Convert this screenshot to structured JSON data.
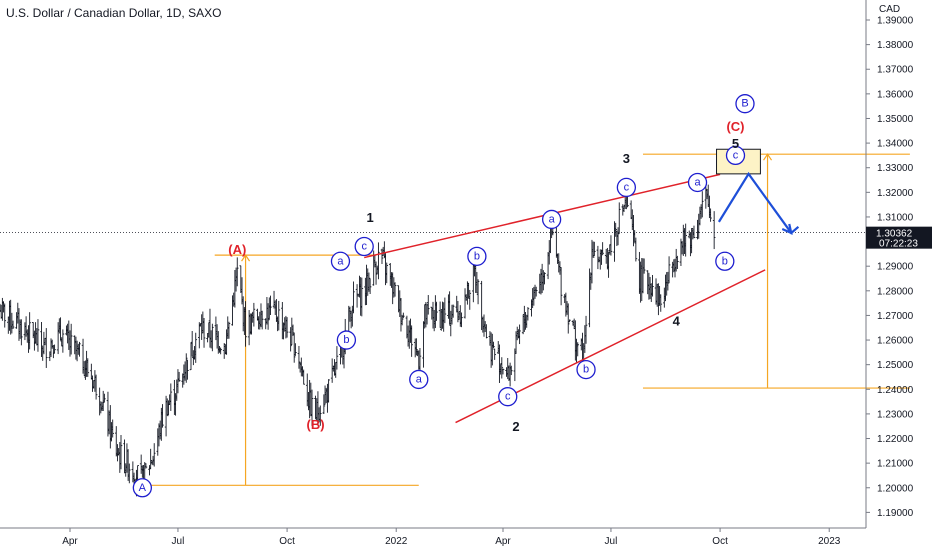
{
  "header": {
    "title": "U.S. Dollar / Canadian Dollar, 1D, SAXO"
  },
  "axis": {
    "currency_label": "CAD",
    "price_ticks": [
      "1.39000",
      "1.38000",
      "1.37000",
      "1.36000",
      "1.35000",
      "1.34000",
      "1.33000",
      "1.32000",
      "1.31000",
      "1.30000",
      "1.29000",
      "1.28000",
      "1.27000",
      "1.26000",
      "1.25000",
      "1.24000",
      "1.23000",
      "1.22000",
      "1.21000",
      "1.20000",
      "1.19000"
    ],
    "time_ticks": [
      "Apr",
      "Jul",
      "Oct",
      "2022",
      "Apr",
      "Jul",
      "Oct",
      "2023"
    ],
    "last_price": "1.30362",
    "countdown": "07:22:23"
  },
  "colors": {
    "bars": "#131722",
    "trendline": "#e0222a",
    "fib": "#f5a623",
    "projection": "#1e4fd8",
    "wave_circle": "#1e1ecf",
    "wave_red": "#e0222a",
    "target_box_fill": "#fdf3c6",
    "price_tag": "#131722"
  },
  "chart_data": {
    "type": "candlestick-ohlc",
    "symbol": "USDCAD",
    "timeframe": "1D",
    "ylim": [
      1.185,
      1.395
    ],
    "x_range": [
      "2021-02-01",
      "2023-02-01"
    ],
    "price_path": [
      [
        "2021-02-01",
        1.272
      ],
      [
        "2021-02-20",
        1.265
      ],
      [
        "2021-03-10",
        1.257
      ],
      [
        "2021-03-25",
        1.262
      ],
      [
        "2021-04-10",
        1.253
      ],
      [
        "2021-04-25",
        1.24
      ],
      [
        "2021-05-10",
        1.215
      ],
      [
        "2021-05-25",
        1.207
      ],
      [
        "2021-06-01",
        1.203
      ],
      [
        "2021-06-10",
        1.213
      ],
      [
        "2021-06-20",
        1.232
      ],
      [
        "2021-06-30",
        1.24
      ],
      [
        "2021-07-10",
        1.253
      ],
      [
        "2021-07-20",
        1.265
      ],
      [
        "2021-07-30",
        1.262
      ],
      [
        "2021-08-10",
        1.258
      ],
      [
        "2021-08-20",
        1.287
      ],
      [
        "2021-08-27",
        1.265
      ],
      [
        "2021-09-10",
        1.272
      ],
      [
        "2021-09-25",
        1.27
      ],
      [
        "2021-10-10",
        1.255
      ],
      [
        "2021-10-20",
        1.234
      ],
      [
        "2021-10-25",
        1.23
      ],
      [
        "2021-11-05",
        1.24
      ],
      [
        "2021-11-15",
        1.254
      ],
      [
        "2021-11-25",
        1.275
      ],
      [
        "2021-12-05",
        1.28
      ],
      [
        "2021-12-18",
        1.295
      ],
      [
        "2021-12-25",
        1.287
      ],
      [
        "2022-01-05",
        1.272
      ],
      [
        "2022-01-20",
        1.253
      ],
      [
        "2022-01-25",
        1.27
      ],
      [
        "2022-02-10",
        1.27
      ],
      [
        "2022-02-25",
        1.272
      ],
      [
        "2022-03-08",
        1.288
      ],
      [
        "2022-03-20",
        1.258
      ],
      [
        "2022-04-01",
        1.25
      ],
      [
        "2022-04-05",
        1.245
      ],
      [
        "2022-04-15",
        1.262
      ],
      [
        "2022-04-25",
        1.277
      ],
      [
        "2022-05-05",
        1.288
      ],
      [
        "2022-05-12",
        1.303
      ],
      [
        "2022-05-20",
        1.283
      ],
      [
        "2022-06-01",
        1.26
      ],
      [
        "2022-06-08",
        1.253
      ],
      [
        "2022-06-15",
        1.298
      ],
      [
        "2022-06-25",
        1.29
      ],
      [
        "2022-07-05",
        1.305
      ],
      [
        "2022-07-14",
        1.318
      ],
      [
        "2022-07-25",
        1.285
      ],
      [
        "2022-08-05",
        1.283
      ],
      [
        "2022-08-12",
        1.275
      ],
      [
        "2022-08-25",
        1.296
      ],
      [
        "2022-09-10",
        1.305
      ],
      [
        "2022-09-19",
        1.318
      ],
      [
        "2022-09-26",
        1.304
      ]
    ],
    "annotations": [
      {
        "label": "A",
        "style": "circle-blue",
        "date": "2021-06-01",
        "price": 1.2,
        "pos": "below"
      },
      {
        "label": "(A)",
        "style": "red",
        "date": "2021-08-20",
        "price": 1.297
      },
      {
        "label": "(B)",
        "style": "red",
        "date": "2021-10-25",
        "price": 1.226
      },
      {
        "label": "1",
        "style": "black",
        "date": "2021-12-10",
        "price": 1.31
      },
      {
        "label": "a",
        "style": "circle-blue",
        "date": "2021-11-15",
        "price": 1.292
      },
      {
        "label": "b",
        "style": "circle-blue",
        "date": "2021-11-20",
        "price": 1.26
      },
      {
        "label": "c",
        "style": "circle-blue",
        "date": "2021-12-05",
        "price": 1.298
      },
      {
        "label": "a",
        "style": "circle-blue",
        "date": "2022-01-20",
        "price": 1.244
      },
      {
        "label": "b",
        "style": "circle-blue",
        "date": "2022-03-10",
        "price": 1.294
      },
      {
        "label": "c",
        "style": "circle-blue",
        "date": "2022-04-05",
        "price": 1.237
      },
      {
        "label": "2",
        "style": "black",
        "date": "2022-04-12",
        "price": 1.225
      },
      {
        "label": "a",
        "style": "circle-blue",
        "date": "2022-05-12",
        "price": 1.309
      },
      {
        "label": "b",
        "style": "circle-blue",
        "date": "2022-06-10",
        "price": 1.248
      },
      {
        "label": "c",
        "style": "circle-blue",
        "date": "2022-07-14",
        "price": 1.322
      },
      {
        "label": "3",
        "style": "black",
        "date": "2022-07-14",
        "price": 1.334
      },
      {
        "label": "4",
        "style": "black",
        "date": "2022-08-25",
        "price": 1.268
      },
      {
        "label": "a",
        "style": "circle-blue",
        "date": "2022-09-12",
        "price": 1.324
      },
      {
        "label": "b",
        "style": "circle-blue",
        "date": "2022-10-05",
        "price": 1.292
      },
      {
        "label": "c",
        "style": "circle-blue",
        "date": "2022-10-14",
        "price": 1.335
      },
      {
        "label": "5",
        "style": "black",
        "date": "2022-10-14",
        "price": 1.34
      },
      {
        "label": "(C)",
        "style": "red",
        "date": "2022-10-14",
        "price": 1.347
      },
      {
        "label": "B",
        "style": "circle-blue",
        "date": "2022-10-22",
        "price": 1.356
      }
    ],
    "trendlines": [
      {
        "name": "upper",
        "from": [
          "2021-12-05",
          1.2935
        ],
        "to": [
          "2022-10-01",
          1.3273
        ]
      },
      {
        "name": "lower",
        "from": [
          "2022-02-20",
          1.2265
        ],
        "to": [
          "2022-11-08",
          1.2885
        ]
      }
    ],
    "fib_levels": [
      {
        "from": "2021-08-01",
        "to": "2021-12-15",
        "price": 1.2945
      },
      {
        "from": "2021-06-01",
        "to": "2022-01-20",
        "price": 1.201
      },
      {
        "from": "2022-07-28",
        "to": "2023-03-10",
        "price": 1.3355
      },
      {
        "from": "2022-07-28",
        "to": "2023-03-10",
        "price": 1.2405
      }
    ],
    "fib_arrows": [
      {
        "date": "2021-08-27",
        "from": 1.201,
        "to": 1.2945
      },
      {
        "date": "2022-11-10",
        "from": 1.2405,
        "to": 1.3355
      }
    ],
    "target_box": {
      "from": "2022-09-28",
      "to": "2022-11-04",
      "price_low": 1.3275,
      "price_high": 1.3375
    },
    "projection": [
      [
        "2022-09-30",
        1.308
      ],
      [
        "2022-10-25",
        1.3275
      ],
      [
        "2022-11-30",
        1.3035
      ],
      [
        "2022-12-06",
        1.306
      ]
    ],
    "last_price_value": 1.30362
  }
}
